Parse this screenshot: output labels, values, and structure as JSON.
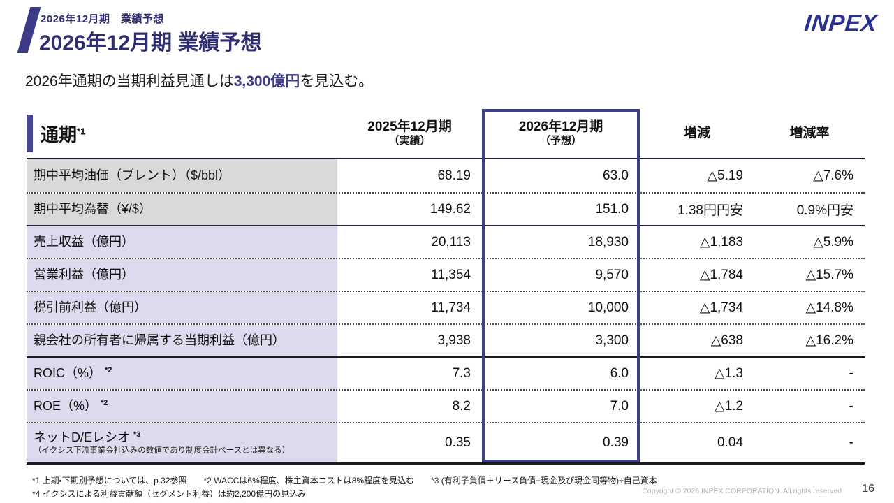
{
  "header": {
    "eyebrow": "2026年12月期　業績予想",
    "title": "2026年12月期 業績予想",
    "logo": "INPEX"
  },
  "subtitle": {
    "pre": "2026年通期の当期利益見通しは",
    "highlight": "3,300億円",
    "post": "を見込む。"
  },
  "table": {
    "corner_title": "通期",
    "corner_sup": "*1",
    "columns": [
      {
        "label": "2025年12月期",
        "sub": "（実績）"
      },
      {
        "label": "2026年12月期",
        "sub": "（予想）"
      },
      {
        "label": "増減"
      },
      {
        "label": "増減率"
      }
    ],
    "rows": [
      {
        "label": "期中平均油価（ブレント）（$/bbl）",
        "v2025": "68.19",
        "v2026": "63.0",
        "change": "△5.19",
        "rate": "△7.6%"
      },
      {
        "label": "期中平均為替（¥/$）",
        "v2025": "149.62",
        "v2026": "151.0",
        "change": "1.38円円安",
        "rate": "0.9%円安"
      },
      {
        "label": "売上収益（億円）",
        "v2025": "20,113",
        "v2026": "18,930",
        "change": "△1,183",
        "rate": "△5.9%"
      },
      {
        "label": "営業利益（億円）",
        "v2025": "11,354",
        "v2026": "9,570",
        "change": "△1,784",
        "rate": "△15.7%"
      },
      {
        "label": "税引前利益（億円）",
        "v2025": "11,734",
        "v2026": "10,000",
        "change": "△1,734",
        "rate": "△14.8%"
      },
      {
        "label": "親会社の所有者に帰属する当期利益（億円）",
        "v2025": "3,938",
        "v2026": "3,300",
        "change": "△638",
        "rate": "△16.2%"
      },
      {
        "label": "ROIC（%）",
        "sup": "*2",
        "v2025": "7.3",
        "v2026": "6.0",
        "change": "△1.3",
        "rate": "-"
      },
      {
        "label": "ROE（%）",
        "sup": "*2",
        "v2025": "8.2",
        "v2026": "7.0",
        "change": "△1.2",
        "rate": "-"
      },
      {
        "label": "ネットD/Eレシオ",
        "sup": "*3",
        "note": "（イクシス下流事業会社込みの数値であり制度会計ベースとは異なる）",
        "v2025": "0.35",
        "v2026": "0.39",
        "change": "0.04",
        "rate": "-"
      }
    ]
  },
  "footnotes": {
    "line1": "*1 上期・下期別予想については、p.32参照　　*2 WACCは6%程度、株主資本コストは8%程度を見込む　　*3 (有利子負債＋リース負債−現金及び現金同等物)÷自己資本",
    "line2": "*4 イクシスによる利益貢献額（セグメント利益）は約2,200億円の見込み"
  },
  "footer": {
    "copyright": "Copyright © 2026 INPEX CORPORATION. All rights reserved.",
    "page": "16"
  },
  "colors": {
    "title_navy": "#2e2e6e",
    "logo_blue": "#2b2f8e",
    "accent_purple": "#45458c",
    "highlight_border": "#3f3f88",
    "row_gray": "#d9d9d9",
    "row_lavender": "#dcdaec"
  }
}
